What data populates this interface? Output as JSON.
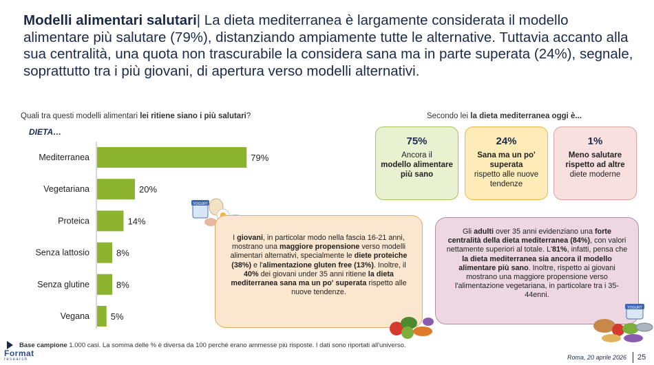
{
  "headline": {
    "title": "Modelli alimentari salutari",
    "separator": "|",
    "text": "La dieta mediterranea è largamente considerata il modello alimentare più salutare (79%), distanziando ampiamente tutte le alternative. Tuttavia accanto alla sua centralità, una quota non trascurabile la considera sana ma in parte superata (24%), segnale, soprattutto tra i più giovani, di apertura verso modelli alternativi."
  },
  "left_question": {
    "prefix": "Quali tra questi modelli alimentari ",
    "bold": "lei ritiene siano i più salutari",
    "suffix": "?"
  },
  "dieta_label": "DIETA…",
  "chart_data": {
    "type": "bar",
    "orientation": "horizontal",
    "categories": [
      "Mediterranea",
      "Vegetariana",
      "Proteica",
      "Senza lattosio",
      "Senza glutine",
      "Vegana"
    ],
    "values": [
      79,
      20,
      14,
      8,
      8,
      5
    ],
    "value_labels": [
      "79%",
      "20%",
      "14%",
      "8%",
      "8%",
      "5%"
    ],
    "unit": "%",
    "xlim": [
      0,
      100
    ],
    "color": "#8cb42e"
  },
  "right_question": {
    "prefix": "Secondo lei ",
    "bold": "la dieta mediterranea oggi è..."
  },
  "opinion_boxes": [
    {
      "pct": "75%",
      "normal1": "Ancora il",
      "bold": "modello alimentare più sano",
      "normal2": ""
    },
    {
      "pct": "24%",
      "normal1": "",
      "bold": "Sana ma un po' superata",
      "normal2": "rispetto alle nuove tendenze"
    },
    {
      "pct": "1%",
      "normal1": "",
      "bold": "Meno salutare rispetto ad altre",
      "normal2": "diete moderne"
    }
  ],
  "young_box": {
    "p1": "I ",
    "b1": "giovani",
    "p2": ", in particolar modo nella fascia 16-21 anni, mostrano una ",
    "b2": "maggiore propensione",
    "p3": " verso modelli alimentari alternativi, specialmente le ",
    "b3": "diete proteiche (38%)",
    "p4": " e l'",
    "b4": "alimentazione gluten free (13%)",
    "p5": ". Inoltre, il ",
    "b5": "40%",
    "p6": " dei giovani under 35 anni ritiene ",
    "b6": "la dieta mediterranea sana ma un po' superata",
    "p7": " rispetto alle nuove tendenze."
  },
  "adult_box": {
    "p1": "Gli ",
    "b1": "adulti",
    "p2": " over 35 anni evidenziano una ",
    "b2": "forte centralità della dieta mediterranea (84%)",
    "p3": ", con valori nettamente superiori al totale. L'",
    "b3": "81%",
    "p4": ", infatti, pensa che ",
    "b4": "la dieta mediterranea sia ancora il modello alimentare più sano",
    "p5": ". Inoltre, rispetto ai giovani mostrano una maggiore propensione verso l'alimentazione vegetariana, in particolare tra i 35-44enni."
  },
  "footnote": {
    "bold": "Base campione",
    "text": " 1.000 casi. La somma delle % è diversa da 100 perché erano ammesse più risposte. I dati sono riportati all'universo."
  },
  "logo": {
    "main": "Format",
    "sub": "research"
  },
  "date": "Roma, 20 aprile 2026",
  "page_number": "25",
  "colors": {
    "navy": "#1b2a4a",
    "bar_green": "#8cb42e",
    "green_box": "#e9f2d0",
    "yellow_box": "#fdebb8",
    "pink_box": "#f8e0de",
    "orange_box": "#fbe6cf",
    "purple_box": "#ecd7e3"
  }
}
